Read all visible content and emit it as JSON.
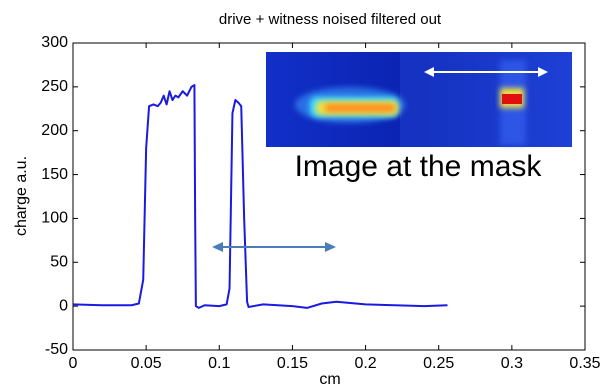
{
  "chart_data": {
    "type": "line",
    "title": "drive + witness noised filtered out",
    "xlabel": "cm",
    "ylabel": "charge a.u.",
    "annotation": "Image at the mask",
    "color": "#1a1ae0",
    "x": [
      0,
      0.02,
      0.04,
      0.045,
      0.048,
      0.05,
      0.052,
      0.055,
      0.058,
      0.06,
      0.062,
      0.064,
      0.066,
      0.068,
      0.07,
      0.072,
      0.075,
      0.078,
      0.081,
      0.083,
      0.0835,
      0.084,
      0.086,
      0.09,
      0.1,
      0.105,
      0.107,
      0.109,
      0.111,
      0.113,
      0.115,
      0.117,
      0.119,
      0.12,
      0.13,
      0.15,
      0.16,
      0.17,
      0.18,
      0.2,
      0.22,
      0.24,
      0.256
    ],
    "values": [
      2,
      1,
      1,
      3,
      30,
      180,
      228,
      230,
      228,
      232,
      240,
      230,
      245,
      235,
      240,
      238,
      245,
      240,
      250,
      252,
      100,
      0,
      -2,
      1,
      0,
      2,
      20,
      220,
      235,
      232,
      228,
      100,
      5,
      -1,
      2,
      0,
      -2,
      3,
      5,
      2,
      1,
      0,
      1
    ],
    "xlim": [
      0,
      0.35
    ],
    "ylim": [
      -50,
      300
    ],
    "xticks": [
      0,
      0.05,
      0.1,
      0.15,
      0.2,
      0.25,
      0.3,
      0.35
    ],
    "yticks": [
      -50,
      0,
      50,
      100,
      150,
      200,
      250,
      300
    ]
  }
}
